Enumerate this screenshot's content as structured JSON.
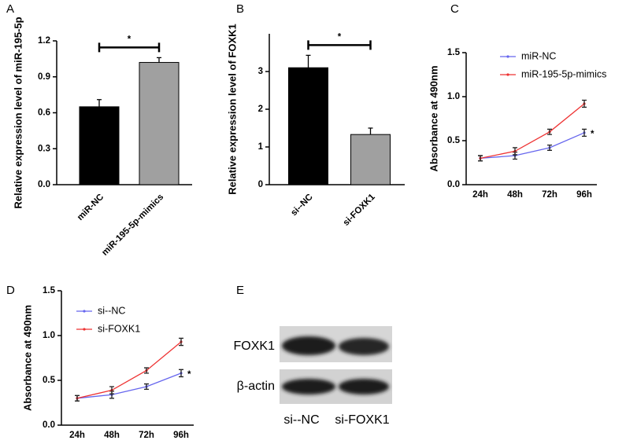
{
  "chart_data": [
    {
      "type": "bar",
      "panel": "A",
      "y_label": "Relative expression level of miR-195-5p",
      "categories": [
        "miR-NC",
        "miR-195-5p-mimics"
      ],
      "values": [
        0.65,
        1.02
      ],
      "errors": [
        0.06,
        0.04
      ],
      "colors": [
        "#000000",
        "#a0a0a0"
      ],
      "annotation": "*",
      "ylim": [
        0,
        1.2
      ],
      "yticks": [
        {
          "value": 0,
          "label": "0.0"
        },
        0.3,
        0.6,
        0.9,
        1.2
      ]
    },
    {
      "type": "bar",
      "panel": "B",
      "y_label": "Relative expression level of FOXK1",
      "categories": [
        "si--NC",
        "si-FOXK1"
      ],
      "values": [
        3.1,
        1.33
      ],
      "errors": [
        0.33,
        0.17
      ],
      "colors": [
        "#000000",
        "#a0a0a0"
      ],
      "annotation": "*",
      "ylim": [
        0,
        4
      ],
      "yticks": [
        0,
        1,
        2,
        3
      ]
    },
    {
      "type": "line",
      "panel": "C",
      "y_label": "Absorbance at 490nm",
      "categories": [
        "24h",
        "48h",
        "72h",
        "96h"
      ],
      "series": [
        {
          "name": "miR-NC",
          "color": "#6666ee",
          "values": [
            0.3,
            0.33,
            0.42,
            0.59
          ],
          "errors": [
            0.03,
            0.04,
            0.03,
            0.04
          ]
        },
        {
          "name": "miR-195-5p-mimics",
          "color": "#ee3333",
          "values": [
            0.3,
            0.38,
            0.6,
            0.92
          ],
          "errors": [
            0.03,
            0.04,
            0.03,
            0.04
          ]
        }
      ],
      "annotation": "*",
      "legend": "upper right",
      "ylim": [
        0,
        1.5
      ],
      "yticks": [
        {
          "value": 0,
          "label": "0.0"
        },
        0.5,
        {
          "value": 1,
          "label": "1.0"
        },
        1.5
      ]
    },
    {
      "type": "line",
      "panel": "D",
      "y_label": "Absorbance at 490nm",
      "categories": [
        "24h",
        "48h",
        "72h",
        "96h"
      ],
      "series": [
        {
          "name": "si--NC",
          "color": "#6666ee",
          "values": [
            0.3,
            0.34,
            0.43,
            0.58
          ],
          "errors": [
            0.03,
            0.04,
            0.03,
            0.04
          ]
        },
        {
          "name": "si-FOXK1",
          "color": "#ee3333",
          "values": [
            0.3,
            0.39,
            0.61,
            0.93
          ],
          "errors": [
            0.03,
            0.04,
            0.03,
            0.04
          ]
        }
      ],
      "annotation": "*",
      "legend": "upper right",
      "ylim": [
        0,
        1.5
      ],
      "yticks": [
        {
          "value": 0,
          "label": "0.0"
        },
        0.5,
        {
          "value": 1,
          "label": "1.0"
        },
        1.5
      ]
    },
    {
      "type": "blot",
      "panel": "E",
      "rows": [
        "FOXK1",
        "β-actin"
      ],
      "lanes": [
        "si--NC",
        "si-FOXK1"
      ]
    }
  ]
}
